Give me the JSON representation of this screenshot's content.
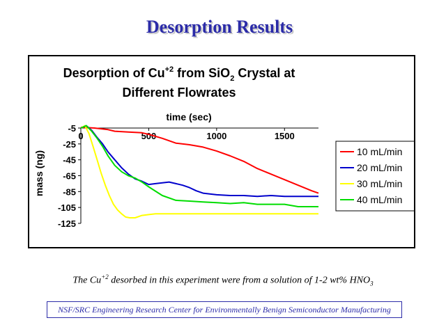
{
  "slide": {
    "title": "Desorption Results",
    "caption": {
      "pre": "The Cu",
      "sup": "+2",
      "mid": " desorbed in this experiment were from a solution of 1-2 wt% HNO",
      "sub": "3"
    },
    "footer": "NSF/SRC Engineering Research Center for Environmentally Benign Semiconductor Manufacturing"
  },
  "chart_data": {
    "type": "line",
    "title_line1": {
      "pre": "Desorption of Cu",
      "sup": "+2",
      "mid": " from SiO",
      "sub": "2",
      "post": " Crystal at"
    },
    "title_line2": "Different Flowrates",
    "xlabel": "time (sec)",
    "ylabel": "mass (ng)",
    "xlim": [
      0,
      1750
    ],
    "ylim": [
      -125,
      -5
    ],
    "xticks": [
      0,
      500,
      1000,
      1500
    ],
    "xtick_labels": [
      "0",
      "500",
      "1000",
      "1500"
    ],
    "yticks": [
      -5,
      -25,
      -45,
      -65,
      -85,
      -105,
      -125
    ],
    "ytick_labels": [
      "-5",
      "-25",
      "-45",
      "-65",
      "-85",
      "-105",
      "-125"
    ],
    "x_axis_position": "top",
    "grid": false,
    "legend_position": "right",
    "series": [
      {
        "name": "10 mL/min",
        "color": "#ff0000",
        "x": [
          0,
          100,
          200,
          250,
          350,
          450,
          500,
          600,
          700,
          800,
          900,
          1000,
          1100,
          1200,
          1300,
          1400,
          1500,
          1600,
          1700,
          1750
        ],
        "y": [
          -4,
          -5,
          -7,
          -9,
          -10,
          -11,
          -13,
          -18,
          -24,
          -26,
          -29,
          -34,
          -40,
          -47,
          -56,
          -63,
          -70,
          -77,
          -84,
          -87
        ]
      },
      {
        "name": "20 mL/min",
        "color": "#0000cc",
        "x": [
          0,
          40,
          80,
          120,
          160,
          200,
          250,
          300,
          350,
          400,
          450,
          500,
          550,
          600,
          650,
          700,
          750,
          800,
          850,
          900,
          1000,
          1100,
          1200,
          1300,
          1400,
          1500,
          1600,
          1700,
          1750
        ],
        "y": [
          -5,
          -2,
          -8,
          -17,
          -25,
          -35,
          -45,
          -55,
          -63,
          -69,
          -72,
          -76,
          -75,
          -74,
          -73,
          -75,
          -77,
          -80,
          -84,
          -87,
          -89,
          -90,
          -90,
          -91,
          -90,
          -91,
          -91,
          -91,
          -91
        ]
      },
      {
        "name": "30 mL/min",
        "color": "#ffff00",
        "x": [
          0,
          30,
          60,
          90,
          120,
          150,
          180,
          210,
          240,
          270,
          300,
          330,
          360,
          400,
          450,
          500,
          550,
          600,
          700,
          800,
          1000,
          1200,
          1400,
          1600,
          1750
        ],
        "y": [
          -5,
          -2,
          -12,
          -28,
          -45,
          -62,
          -77,
          -90,
          -101,
          -108,
          -113,
          -117,
          -118,
          -118,
          -115,
          -114,
          -113,
          -113,
          -113,
          -113,
          -113,
          -113,
          -113,
          -113,
          -113
        ]
      },
      {
        "name": "40 mL/min",
        "color": "#00dd00",
        "x": [
          0,
          40,
          80,
          120,
          160,
          200,
          250,
          300,
          350,
          400,
          450,
          500,
          600,
          700,
          800,
          900,
          1000,
          1100,
          1200,
          1300,
          1400,
          1500,
          1600,
          1700,
          1750
        ],
        "y": [
          -5,
          -2,
          -9,
          -18,
          -28,
          -40,
          -52,
          -60,
          -65,
          -68,
          -73,
          -79,
          -90,
          -96,
          -97,
          -98,
          -99,
          -100,
          -99,
          -101,
          -101,
          -101,
          -104,
          -104,
          -104
        ]
      }
    ]
  }
}
